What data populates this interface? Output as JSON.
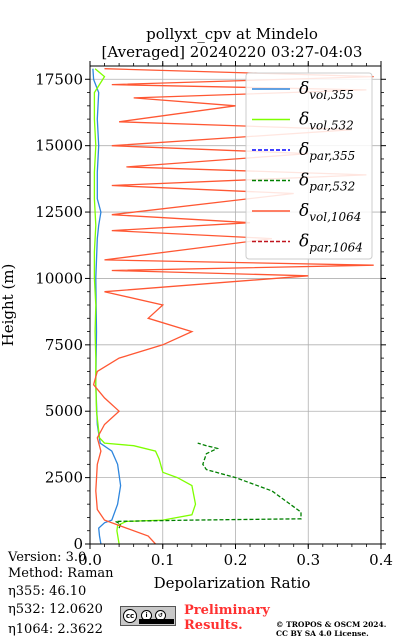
{
  "title_line1": "pollyxt_cpv at Mindelo",
  "title_line2": "[Averaged] 20240220 03:27-04:03",
  "info": {
    "version": "Version: 3.0",
    "method": "Method: Raman",
    "eta355": "η355:  46.10",
    "eta532": "η532: 12.0620",
    "eta1064": "η1064: 2.3622"
  },
  "footer": {
    "preliminary_line1": "Preliminary",
    "preliminary_line2": "Results.",
    "copyright_line1": "© TROPOS & OSCM 2024.",
    "copyright_line2": "CC BY SA 4.0 License."
  },
  "colors": {
    "vol355": "#2e86de",
    "vol532": "#7fff00",
    "par355": "#0000ff",
    "par532": "#008000",
    "vol1064": "#ff5733",
    "par1064": "#c0141e"
  },
  "chart_data": {
    "type": "line",
    "xlabel": "Depolarization Ratio",
    "ylabel": "Height (m)",
    "xlim": [
      0,
      0.4
    ],
    "ylim": [
      0,
      18000
    ],
    "xticks": [
      "0.0",
      "0.1",
      "0.2",
      "0.3",
      "0.4"
    ],
    "yticks": [
      "0",
      "2500",
      "5000",
      "7500",
      "10000",
      "12500",
      "15000",
      "17500"
    ],
    "grid": true,
    "legend_placement": "top-right",
    "legend": [
      {
        "label": "δvol,355",
        "sym": "δ",
        "sub": "vol,355",
        "color": "#2e86de",
        "dash": false
      },
      {
        "label": "δvol,532",
        "sym": "δ",
        "sub": "vol,532",
        "color": "#7fff00",
        "dash": false
      },
      {
        "label": "δpar,355",
        "sym": "δ",
        "sub": "par,355",
        "color": "#0000ff",
        "dash": true
      },
      {
        "label": "δpar,532",
        "sym": "δ",
        "sub": "par,532",
        "color": "#008000",
        "dash": true
      },
      {
        "label": "δvol,1064",
        "sym": "δ",
        "sub": "vol,1064",
        "color": "#ff5733",
        "dash": false
      },
      {
        "label": "δpar,1064",
        "sym": "δ",
        "sub": "par,1064",
        "color": "#c0141e",
        "dash": true
      }
    ],
    "series": [
      {
        "key": "vol355",
        "color": "#2e86de",
        "dash": false,
        "points": [
          [
            0.015,
            0
          ],
          [
            0.013,
            300
          ],
          [
            0.012,
            600
          ],
          [
            0.02,
            800
          ],
          [
            0.03,
            900
          ],
          [
            0.038,
            1500
          ],
          [
            0.042,
            2200
          ],
          [
            0.038,
            3000
          ],
          [
            0.03,
            3500
          ],
          [
            0.014,
            3800
          ],
          [
            0.01,
            4500
          ],
          [
            0.008,
            6000
          ],
          [
            0.009,
            8000
          ],
          [
            0.008,
            10000
          ],
          [
            0.01,
            11500
          ],
          [
            0.012,
            12000
          ],
          [
            0.015,
            12500
          ],
          [
            0.01,
            13000
          ],
          [
            0.01,
            14000
          ],
          [
            0.012,
            15000
          ],
          [
            0.01,
            16000
          ],
          [
            0.012,
            17000
          ],
          [
            0.005,
            17500
          ],
          [
            0.004,
            17900
          ]
        ]
      },
      {
        "key": "vol532",
        "color": "#7fff00",
        "dash": false,
        "points": [
          [
            0.04,
            0
          ],
          [
            0.037,
            500
          ],
          [
            0.038,
            700
          ],
          [
            0.05,
            850
          ],
          [
            0.1,
            900
          ],
          [
            0.14,
            1100
          ],
          [
            0.145,
            1500
          ],
          [
            0.14,
            2200
          ],
          [
            0.12,
            2500
          ],
          [
            0.1,
            2700
          ],
          [
            0.095,
            3200
          ],
          [
            0.09,
            3500
          ],
          [
            0.06,
            3700
          ],
          [
            0.02,
            3800
          ],
          [
            0.013,
            4000
          ],
          [
            0.009,
            5000
          ],
          [
            0.008,
            6000
          ],
          [
            0.008,
            7000
          ],
          [
            0.007,
            8000
          ],
          [
            0.008,
            9000
          ],
          [
            0.006,
            10000
          ],
          [
            0.006,
            11000
          ],
          [
            0.008,
            12000
          ],
          [
            0.006,
            13000
          ],
          [
            0.006,
            14000
          ],
          [
            0.008,
            15000
          ],
          [
            0.006,
            16000
          ],
          [
            0.006,
            17000
          ],
          [
            0.02,
            17600
          ],
          [
            0.007,
            17900
          ]
        ]
      },
      {
        "key": "par532",
        "color": "#008000",
        "dash": true,
        "points": [
          [
            0.04,
            600
          ],
          [
            0.042,
            750
          ],
          [
            0.035,
            850
          ],
          [
            0.14,
            900
          ],
          [
            0.29,
            950
          ],
          [
            0.29,
            1200
          ],
          [
            0.25,
            2000
          ],
          [
            0.2,
            2500
          ],
          [
            0.16,
            2800
          ],
          [
            0.155,
            3000
          ],
          [
            0.16,
            3400
          ],
          [
            0.175,
            3600
          ],
          [
            0.16,
            3700
          ],
          [
            0.148,
            3800
          ]
        ]
      },
      {
        "key": "vol1064",
        "color": "#ff5733",
        "dash": false,
        "points": [
          [
            0.09,
            0
          ],
          [
            0.08,
            300
          ],
          [
            0.05,
            600
          ],
          [
            0.02,
            900
          ],
          [
            0.01,
            1300
          ],
          [
            0.008,
            2000
          ],
          [
            0.01,
            3000
          ],
          [
            0.015,
            3500
          ],
          [
            0.01,
            4000
          ],
          [
            0.02,
            4500
          ],
          [
            0.04,
            5000
          ],
          [
            0.02,
            5500
          ],
          [
            0.005,
            6000
          ],
          [
            0.01,
            6500
          ],
          [
            0.04,
            7000
          ],
          [
            0.1,
            7500
          ],
          [
            0.14,
            8000
          ],
          [
            0.08,
            8500
          ],
          [
            0.1,
            9000
          ],
          [
            0.02,
            9500
          ],
          [
            0.3,
            10100
          ],
          [
            0.03,
            10300
          ],
          [
            0.39,
            10500
          ],
          [
            0.02,
            10700
          ],
          [
            0.25,
            11500
          ],
          [
            0.03,
            11800
          ],
          [
            0.22,
            12100
          ],
          [
            0.03,
            12400
          ],
          [
            0.28,
            13200
          ],
          [
            0.03,
            13500
          ],
          [
            0.38,
            13900
          ],
          [
            0.05,
            14200
          ],
          [
            0.3,
            14700
          ],
          [
            0.03,
            15000
          ],
          [
            0.36,
            15600
          ],
          [
            0.04,
            15900
          ],
          [
            0.2,
            16500
          ],
          [
            0.06,
            16800
          ],
          [
            0.38,
            17100
          ],
          [
            0.03,
            17300
          ],
          [
            0.39,
            17600
          ],
          [
            0.02,
            17900
          ]
        ]
      }
    ]
  }
}
